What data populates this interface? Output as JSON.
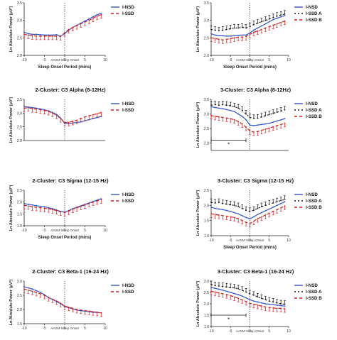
{
  "chart_data": [
    {
      "type": "line",
      "title": "",
      "ylabel": "Ln Absolute Power (μV²)",
      "xlabel": "Sleep Onset Period (mins)",
      "onset_label": "AASM Sleep Onset",
      "ylim": [
        2.0,
        3.5
      ],
      "yticks": [
        "2.0",
        "2.5",
        "3.0",
        "3.5"
      ],
      "xticks": [
        "-10",
        "-5",
        "0",
        "5",
        "10"
      ],
      "xlim": [
        -10,
        10
      ],
      "significance": null,
      "x": [
        -10,
        -9,
        -8,
        -7,
        -6,
        -5,
        -4,
        -3,
        -2,
        -1,
        0,
        1,
        2,
        3,
        4,
        5,
        6,
        7,
        8,
        9
      ],
      "series": [
        {
          "name": "I-NSD",
          "color": "#3355cc",
          "dash": "",
          "errbar": false,
          "values": [
            2.66,
            2.62,
            2.6,
            2.6,
            2.59,
            2.58,
            2.58,
            2.58,
            2.59,
            2.55,
            2.62,
            2.72,
            2.8,
            2.86,
            2.92,
            2.98,
            3.04,
            3.1,
            3.16,
            3.2
          ]
        },
        {
          "name": "I-SSD",
          "color": "#d42020",
          "dash": "4,3",
          "errbar": true,
          "values": [
            2.6,
            2.58,
            2.56,
            2.55,
            2.55,
            2.55,
            2.55,
            2.55,
            2.55,
            2.54,
            2.65,
            2.74,
            2.8,
            2.85,
            2.9,
            2.95,
            3.0,
            3.06,
            3.12,
            3.16
          ]
        }
      ]
    },
    {
      "type": "line",
      "title": "",
      "ylabel": "Ln Absolute Power (μV²)",
      "xlabel": "Sleep Onset Period (mins)",
      "onset_label": "AASM Sleep Onset",
      "ylim": [
        2.0,
        3.5
      ],
      "yticks": [
        "2.0",
        "2.5",
        "3.0",
        "3.5"
      ],
      "xticks": [
        "-10",
        "-5",
        "0",
        "5",
        "10"
      ],
      "xlim": [
        -10,
        10
      ],
      "significance": null,
      "x": [
        -10,
        -9,
        -8,
        -7,
        -6,
        -5,
        -4,
        -3,
        -2,
        -1,
        0,
        1,
        2,
        3,
        4,
        5,
        6,
        7,
        8,
        9
      ],
      "series": [
        {
          "name": "I-NSD",
          "color": "#3355cc",
          "dash": "",
          "errbar": false,
          "values": [
            2.62,
            2.58,
            2.56,
            2.56,
            2.55,
            2.55,
            2.56,
            2.57,
            2.58,
            2.58,
            2.64,
            2.72,
            2.78,
            2.84,
            2.9,
            2.96,
            3.02,
            3.06,
            3.1,
            3.14
          ]
        },
        {
          "name": "I-SSD A",
          "color": "#111111",
          "dash": "2,3",
          "errbar": true,
          "values": [
            2.74,
            2.72,
            2.7,
            2.72,
            2.74,
            2.76,
            2.78,
            2.78,
            2.8,
            2.78,
            2.82,
            2.88,
            2.92,
            2.96,
            3.0,
            3.04,
            3.08,
            3.12,
            3.15,
            3.18
          ]
        },
        {
          "name": "I-SSD B",
          "color": "#d42020",
          "dash": "4,3",
          "errbar": true,
          "values": [
            2.5,
            2.48,
            2.46,
            2.44,
            2.46,
            2.48,
            2.5,
            2.52,
            2.52,
            2.54,
            2.6,
            2.66,
            2.7,
            2.74,
            2.78,
            2.82,
            2.86,
            2.9,
            2.94,
            2.98
          ]
        }
      ]
    },
    {
      "type": "line",
      "title": "2-Cluster: C3 Alpha (8-12Hz)",
      "ylabel": "Ln Absolute Power (μV²)",
      "xlabel": "",
      "onset_label": "",
      "ylim": [
        2.0,
        3.5
      ],
      "yticks": [
        "2.0",
        "2.5",
        "3.0",
        "3.5"
      ],
      "xticks": [],
      "xlim": [
        -10,
        10
      ],
      "significance": null,
      "x": [
        -10,
        -9,
        -8,
        -7,
        -6,
        -5,
        -4,
        -3,
        -2,
        -1,
        0,
        1,
        2,
        3,
        4,
        5,
        6,
        7,
        8,
        9
      ],
      "series": [
        {
          "name": "I-NSD",
          "color": "#3355cc",
          "dash": "",
          "errbar": false,
          "values": [
            3.24,
            3.22,
            3.2,
            3.18,
            3.15,
            3.12,
            3.08,
            3.02,
            2.95,
            2.82,
            2.62,
            2.62,
            2.64,
            2.66,
            2.68,
            2.72,
            2.76,
            2.8,
            2.84,
            2.88
          ]
        },
        {
          "name": "I-SSD",
          "color": "#d42020",
          "dash": "4,3",
          "errbar": true,
          "values": [
            3.18,
            3.2,
            3.16,
            3.15,
            3.12,
            3.1,
            3.06,
            3.0,
            2.92,
            2.8,
            2.66,
            2.66,
            2.7,
            2.74,
            2.8,
            2.86,
            2.9,
            2.94,
            2.98,
            3.02
          ]
        }
      ]
    },
    {
      "type": "line",
      "title": "3-Cluster: C3 Alpha (8-12Hz)",
      "ylabel": "Ln Absolute Power (μV²)",
      "xlabel": "",
      "onset_label": "",
      "ylim": [
        1.75,
        3.5
      ],
      "yticks": [
        "2.0",
        "2.5",
        "3.0",
        "3.5"
      ],
      "xticks": [],
      "xlim": [
        -10,
        10
      ],
      "significance": {
        "from": -10,
        "to": -1,
        "y": 2.1,
        "label": "*"
      },
      "x": [
        -10,
        -9,
        -8,
        -7,
        -6,
        -5,
        -4,
        -3,
        -2,
        -1,
        0,
        1,
        2,
        3,
        4,
        5,
        6,
        7,
        8,
        9
      ],
      "series": [
        {
          "name": "I-NSD",
          "color": "#3355cc",
          "dash": "",
          "errbar": false,
          "values": [
            3.25,
            3.22,
            3.2,
            3.18,
            3.15,
            3.12,
            3.08,
            3.0,
            2.92,
            2.8,
            2.62,
            2.6,
            2.62,
            2.64,
            2.66,
            2.68,
            2.72,
            2.76,
            2.8,
            2.84
          ]
        },
        {
          "name": "I-SSD A",
          "color": "#111111",
          "dash": "2,3",
          "errbar": true,
          "values": [
            3.3,
            3.32,
            3.3,
            3.32,
            3.3,
            3.28,
            3.25,
            3.2,
            3.12,
            3.0,
            2.88,
            2.85,
            2.86,
            2.9,
            2.94,
            2.98,
            3.02,
            3.06,
            3.1,
            3.14
          ]
        },
        {
          "name": "I-SSD B",
          "color": "#d42020",
          "dash": "4,3",
          "errbar": true,
          "values": [
            2.95,
            2.92,
            2.9,
            2.88,
            2.86,
            2.84,
            2.8,
            2.74,
            2.66,
            2.55,
            2.42,
            2.38,
            2.4,
            2.44,
            2.48,
            2.52,
            2.56,
            2.6,
            2.64,
            2.68
          ]
        }
      ]
    },
    {
      "type": "line",
      "title": "2-Cluster: C3 Sigma (12-15 Hz)",
      "ylabel": "Ln Absolute Power (μV²)",
      "xlabel": "Sleep Onset Period (mins)",
      "onset_label": "AASM Sleep Onset",
      "ylim": [
        1.0,
        2.5
      ],
      "yticks": [
        "1.0",
        "1.5",
        "2.0",
        "2.5"
      ],
      "xticks": [
        "-10",
        "-5",
        "0",
        "5",
        "10"
      ],
      "xlim": [
        -10,
        10
      ],
      "significance": null,
      "x": [
        -10,
        -9,
        -8,
        -7,
        -6,
        -5,
        -4,
        -3,
        -2,
        -1,
        0,
        1,
        2,
        3,
        4,
        5,
        6,
        7,
        8,
        9
      ],
      "series": [
        {
          "name": "I-NSD",
          "color": "#3355cc",
          "dash": "",
          "errbar": false,
          "values": [
            1.94,
            1.9,
            1.88,
            1.85,
            1.82,
            1.8,
            1.76,
            1.72,
            1.66,
            1.6,
            1.58,
            1.64,
            1.72,
            1.78,
            1.84,
            1.9,
            1.96,
            2.02,
            2.08,
            2.14
          ]
        },
        {
          "name": "I-SSD",
          "color": "#d42020",
          "dash": "4,3",
          "errbar": true,
          "values": [
            1.86,
            1.84,
            1.8,
            1.78,
            1.76,
            1.74,
            1.72,
            1.68,
            1.64,
            1.58,
            1.56,
            1.62,
            1.7,
            1.76,
            1.82,
            1.88,
            1.94,
            2.0,
            2.05,
            2.1
          ]
        }
      ]
    },
    {
      "type": "line",
      "title": "3-Cluster: C3 Sigma (12-15 Hz)",
      "ylabel": "Ln Absolute Power (μV²)",
      "xlabel": "Sleep Onset Period (mins)",
      "onset_label": "AASM Sleep Onset",
      "ylim": [
        1.0,
        2.5
      ],
      "yticks": [
        "1.0",
        "1.5",
        "2.0",
        "2.5"
      ],
      "xticks": [
        "-10",
        "-5",
        "0",
        "5",
        "10"
      ],
      "xlim": [
        -10,
        10
      ],
      "significance": null,
      "x": [
        -10,
        -9,
        -8,
        -7,
        -6,
        -5,
        -4,
        -3,
        -2,
        -1,
        0,
        1,
        2,
        3,
        4,
        5,
        6,
        7,
        8,
        9
      ],
      "series": [
        {
          "name": "I-NSD",
          "color": "#3355cc",
          "dash": "",
          "errbar": false,
          "values": [
            1.94,
            1.9,
            1.88,
            1.86,
            1.83,
            1.8,
            1.76,
            1.72,
            1.66,
            1.6,
            1.56,
            1.62,
            1.7,
            1.76,
            1.82,
            1.88,
            1.94,
            2.0,
            2.06,
            2.12
          ]
        },
        {
          "name": "I-SSD A",
          "color": "#111111",
          "dash": "2,3",
          "errbar": true,
          "values": [
            2.1,
            2.08,
            2.1,
            2.06,
            2.04,
            2.02,
            2.0,
            1.96,
            1.9,
            1.84,
            1.8,
            1.84,
            1.9,
            1.96,
            2.0,
            2.04,
            2.08,
            2.12,
            2.16,
            2.2
          ]
        },
        {
          "name": "I-SSD B",
          "color": "#d42020",
          "dash": "4,3",
          "errbar": true,
          "values": [
            1.72,
            1.7,
            1.68,
            1.66,
            1.64,
            1.62,
            1.6,
            1.56,
            1.5,
            1.44,
            1.4,
            1.48,
            1.56,
            1.62,
            1.68,
            1.74,
            1.8,
            1.86,
            1.92,
            1.98
          ]
        }
      ]
    },
    {
      "type": "line",
      "title": "2-Cluster: C3 Beta-1 (16-24 Hz)",
      "ylabel": "Ln Absolute Power (μV²)",
      "xlabel": "",
      "onset_label": "AASM Sleep Onset",
      "ylim": [
        1.5,
        3.0
      ],
      "yticks": [
        "1.5",
        "2.0",
        "2.5",
        "3.0"
      ],
      "xticks": [
        "-10",
        "-5",
        "0",
        "5",
        "10"
      ],
      "xlim": [
        -10,
        10
      ],
      "significance": null,
      "x": [
        -10,
        -9,
        -8,
        -7,
        -6,
        -5,
        -4,
        -3,
        -2,
        -1,
        0,
        1,
        2,
        3,
        4,
        5,
        6,
        7,
        8,
        9
      ],
      "series": [
        {
          "name": "I-NSD",
          "color": "#3355cc",
          "dash": "",
          "errbar": false,
          "values": [
            2.8,
            2.76,
            2.72,
            2.66,
            2.6,
            2.52,
            2.42,
            2.35,
            2.28,
            2.2,
            2.1,
            2.06,
            2.02,
            1.98,
            1.96,
            1.94,
            1.92,
            1.9,
            1.9,
            1.88
          ]
        },
        {
          "name": "I-SSD",
          "color": "#d42020",
          "dash": "4,3",
          "errbar": true,
          "values": [
            2.72,
            2.68,
            2.64,
            2.6,
            2.55,
            2.5,
            2.42,
            2.36,
            2.3,
            2.22,
            2.12,
            2.08,
            2.04,
            2.0,
            1.98,
            1.96,
            1.94,
            1.92,
            1.9,
            1.88
          ]
        }
      ]
    },
    {
      "type": "line",
      "title": "3-Cluster: C3 Beta-1 (16-24 Hz)",
      "ylabel": "Ln Absolute Power (μV²)",
      "xlabel": "",
      "onset_label": "AASM Sleep Onset",
      "ylim": [
        1.0,
        3.0
      ],
      "yticks": [
        "1.0",
        "1.5",
        "2.0",
        "2.5",
        "3.0"
      ],
      "xticks": [
        "-10",
        "-5",
        "0",
        "5",
        "10"
      ],
      "xlim": [
        -10,
        10
      ],
      "significance": {
        "from": -10,
        "to": -1,
        "y": 1.5,
        "label": "*"
      },
      "x": [
        -10,
        -9,
        -8,
        -7,
        -6,
        -5,
        -4,
        -3,
        -2,
        -1,
        0,
        1,
        2,
        3,
        4,
        5,
        6,
        7,
        8,
        9
      ],
      "series": [
        {
          "name": "I-NSD",
          "color": "#3355cc",
          "dash": "",
          "errbar": false,
          "values": [
            2.72,
            2.68,
            2.64,
            2.6,
            2.55,
            2.5,
            2.45,
            2.4,
            2.34,
            2.26,
            2.18,
            2.12,
            2.08,
            2.04,
            2.0,
            1.98,
            1.96,
            1.94,
            1.92,
            1.9
          ]
        },
        {
          "name": "I-SSD A",
          "color": "#111111",
          "dash": "2,3",
          "errbar": true,
          "values": [
            2.85,
            2.8,
            2.78,
            2.76,
            2.74,
            2.72,
            2.7,
            2.66,
            2.6,
            2.52,
            2.44,
            2.38,
            2.3,
            2.24,
            2.18,
            2.12,
            2.08,
            2.04,
            2.0,
            1.98
          ]
        },
        {
          "name": "I-SSD B",
          "color": "#d42020",
          "dash": "4,3",
          "errbar": true,
          "values": [
            2.55,
            2.52,
            2.48,
            2.44,
            2.4,
            2.36,
            2.3,
            2.24,
            2.18,
            2.1,
            2.02,
            1.98,
            1.94,
            1.9,
            1.86,
            1.84,
            1.82,
            1.8,
            1.8,
            1.78
          ]
        }
      ]
    }
  ]
}
